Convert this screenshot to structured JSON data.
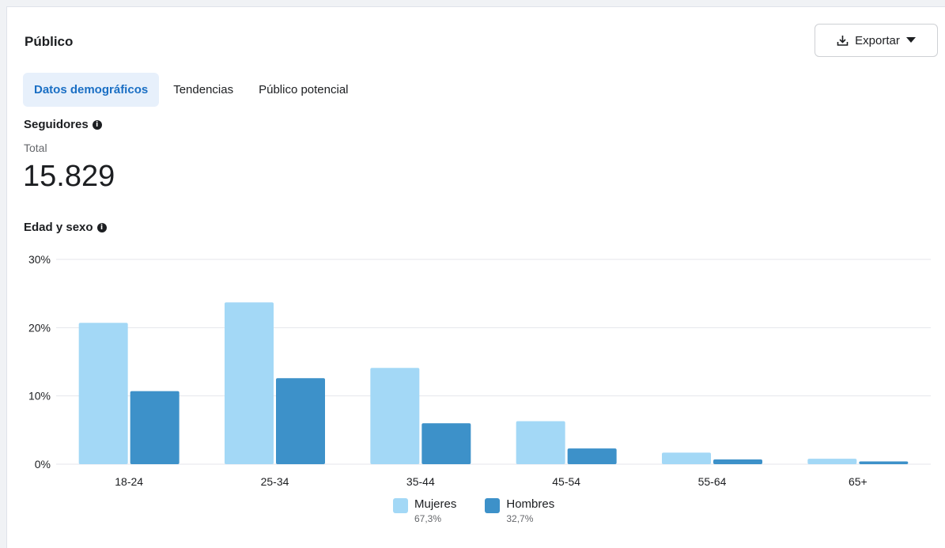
{
  "header": {
    "title": "Público",
    "export_label": "Exportar"
  },
  "tabs": [
    {
      "label": "Datos demográficos",
      "active": true
    },
    {
      "label": "Tendencias",
      "active": false
    },
    {
      "label": "Público potencial",
      "active": false
    }
  ],
  "followers": {
    "title": "Seguidores",
    "total_label": "Total",
    "total_value": "15.829"
  },
  "age_gender": {
    "title": "Edad y sexo"
  },
  "icons": {
    "info": "info-icon",
    "download": "download-icon",
    "caret": "caret-down-icon"
  },
  "colors": {
    "women": "#a3d8f6",
    "men": "#3d91c9",
    "accent": "#1a6fc4",
    "tab_active_bg": "#e7f0fb"
  },
  "chart_data": {
    "type": "bar",
    "categories": [
      "18-24",
      "25-34",
      "35-44",
      "45-54",
      "55-64",
      "65+"
    ],
    "series": [
      {
        "name": "Mujeres",
        "share": "67,3%",
        "values": [
          20.7,
          23.7,
          14.1,
          6.3,
          1.7,
          0.8
        ]
      },
      {
        "name": "Hombres",
        "share": "32,7%",
        "values": [
          10.7,
          12.6,
          6.0,
          2.3,
          0.7,
          0.4
        ]
      }
    ],
    "ylim": [
      0,
      30
    ],
    "yticks": [
      "0%",
      "10%",
      "20%",
      "30%"
    ],
    "grid": true,
    "legend": "bottom"
  }
}
